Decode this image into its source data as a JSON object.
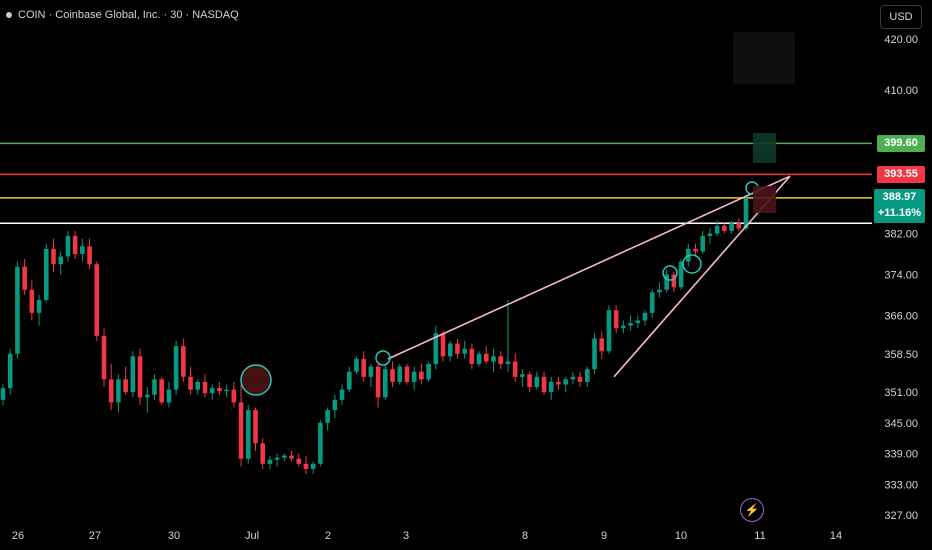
{
  "header": {
    "symbol_line": "COIN · Coinbase Global, Inc. · 30 · NASDAQ",
    "currency": "USD"
  },
  "price_tags": [
    {
      "label": "399.60",
      "value": 399.6,
      "color": "#4caf50"
    },
    {
      "label": "393.55",
      "value": 393.55,
      "color": "#f23645"
    },
    {
      "label": "388.97",
      "label2": "+11.16%",
      "value": 388.97,
      "color": "#089981"
    }
  ],
  "chart_data": {
    "type": "candlestick",
    "yaxis_ticks": [
      "420.00",
      "410.00",
      "399.60",
      "393.55",
      "388.97",
      "382.00",
      "374.00",
      "366.00",
      "358.50",
      "351.00",
      "345.00",
      "339.00",
      "333.00",
      "327.00"
    ],
    "x_ticks": [
      "26",
      "27",
      "30",
      "Jul",
      "2",
      "3",
      "8",
      "9",
      "10",
      "11",
      "14"
    ],
    "horizontal_levels": [
      {
        "value": 399.6,
        "color": "#4caf50"
      },
      {
        "value": 393.55,
        "color": "#f23645"
      },
      {
        "value": 388.97,
        "color": "#f0c93a"
      },
      {
        "value": 384.0,
        "color": "#ffffff"
      }
    ],
    "wedge_lines": [
      {
        "from": [
          388,
          357.5
        ],
        "to": [
          790,
          393.2
        ],
        "color": "#f5b8cf"
      },
      {
        "from": [
          614,
          354.0
        ],
        "to": [
          790,
          393.2
        ],
        "color": "#f5b8cf"
      }
    ],
    "candles": [
      [
        349.5,
        352.5,
        348.5,
        351.8
      ],
      [
        351.8,
        359.5,
        350.5,
        358.5
      ],
      [
        358.5,
        376.5,
        357.5,
        375.5
      ],
      [
        375.5,
        377.0,
        370.0,
        371.0
      ],
      [
        371.0,
        373.0,
        365.0,
        366.5
      ],
      [
        366.5,
        370.0,
        364.0,
        369.0
      ],
      [
        369.0,
        380.0,
        368.5,
        379.0
      ],
      [
        379.0,
        381.0,
        374.5,
        376.0
      ],
      [
        376.0,
        378.5,
        374.0,
        377.5
      ],
      [
        377.5,
        382.5,
        376.5,
        381.5
      ],
      [
        381.5,
        382.5,
        377.0,
        378.0
      ],
      [
        378.0,
        381.0,
        376.5,
        379.5
      ],
      [
        379.5,
        381.0,
        375.0,
        376.0
      ],
      [
        376.0,
        376.5,
        361.0,
        362.0
      ],
      [
        362.0,
        363.5,
        352.0,
        353.5
      ],
      [
        353.5,
        356.5,
        347.5,
        349.0
      ],
      [
        349.0,
        354.5,
        347.0,
        353.5
      ],
      [
        353.5,
        356.0,
        350.5,
        351.0
      ],
      [
        351.0,
        359.0,
        350.0,
        358.0
      ],
      [
        358.0,
        359.5,
        348.5,
        350.0
      ],
      [
        350.0,
        352.0,
        347.0,
        350.5
      ],
      [
        350.5,
        354.5,
        349.5,
        353.5
      ],
      [
        353.5,
        354.0,
        348.5,
        349.0
      ],
      [
        349.0,
        353.0,
        348.0,
        351.5
      ],
      [
        351.5,
        361.0,
        350.5,
        360.0
      ],
      [
        360.0,
        361.5,
        353.0,
        354.0
      ],
      [
        354.0,
        356.0,
        350.5,
        351.5
      ],
      [
        351.5,
        353.5,
        350.5,
        353.0
      ],
      [
        353.0,
        354.5,
        350.0,
        350.8
      ],
      [
        350.8,
        352.5,
        349.5,
        351.8
      ],
      [
        351.8,
        353.0,
        350.5,
        351.2
      ],
      [
        351.2,
        352.5,
        350.0,
        351.5
      ],
      [
        351.5,
        353.0,
        348.0,
        349.0
      ],
      [
        349.0,
        352.5,
        336.5,
        338.0
      ],
      [
        338.0,
        348.5,
        337.0,
        347.5
      ],
      [
        347.5,
        348.0,
        339.5,
        341.0
      ],
      [
        341.0,
        342.0,
        336.0,
        337.0
      ],
      [
        337.0,
        338.5,
        336.0,
        337.8
      ],
      [
        337.8,
        339.0,
        336.5,
        338.2
      ],
      [
        338.2,
        339.0,
        337.5,
        338.6
      ],
      [
        338.6,
        339.5,
        337.5,
        338.0
      ],
      [
        338.0,
        339.0,
        336.5,
        337.0
      ],
      [
        337.0,
        338.5,
        335.0,
        336.0
      ],
      [
        336.0,
        337.5,
        335.0,
        337.0
      ],
      [
        337.0,
        345.5,
        336.5,
        345.0
      ],
      [
        345.0,
        348.0,
        343.5,
        347.5
      ],
      [
        347.5,
        350.5,
        346.0,
        349.5
      ],
      [
        349.5,
        352.5,
        348.5,
        351.5
      ],
      [
        351.5,
        356.0,
        351.0,
        355.0
      ],
      [
        355.0,
        358.0,
        354.5,
        357.5
      ],
      [
        357.5,
        359.0,
        353.0,
        354.0
      ],
      [
        354.0,
        356.5,
        352.0,
        356.0
      ],
      [
        356.0,
        357.0,
        348.0,
        350.0
      ],
      [
        350.0,
        356.5,
        349.5,
        355.5
      ],
      [
        355.5,
        357.0,
        352.0,
        353.0
      ],
      [
        353.0,
        356.5,
        352.5,
        356.0
      ],
      [
        356.0,
        356.5,
        352.5,
        353.0
      ],
      [
        353.0,
        356.0,
        351.5,
        355.0
      ],
      [
        355.0,
        356.5,
        352.5,
        353.5
      ],
      [
        353.5,
        357.0,
        353.0,
        356.5
      ],
      [
        356.5,
        364.0,
        355.5,
        362.5
      ],
      [
        362.5,
        363.0,
        357.0,
        358.0
      ],
      [
        358.0,
        361.0,
        357.0,
        360.5
      ],
      [
        360.5,
        361.5,
        357.5,
        358.5
      ],
      [
        358.5,
        361.0,
        357.5,
        359.5
      ],
      [
        359.5,
        360.5,
        355.5,
        356.5
      ],
      [
        356.5,
        359.0,
        356.0,
        358.5
      ],
      [
        358.5,
        360.0,
        356.5,
        357.0
      ],
      [
        357.0,
        359.5,
        355.0,
        358.0
      ],
      [
        358.0,
        359.0,
        355.5,
        356.5
      ],
      [
        356.5,
        369.0,
        355.0,
        357.0
      ],
      [
        357.0,
        358.5,
        353.0,
        354.0
      ],
      [
        354.0,
        355.5,
        352.0,
        354.5
      ],
      [
        354.5,
        355.0,
        351.0,
        352.0
      ],
      [
        352.0,
        355.0,
        351.5,
        354.0
      ],
      [
        354.0,
        355.0,
        350.5,
        351.0
      ],
      [
        351.0,
        354.0,
        349.5,
        353.0
      ],
      [
        353.0,
        354.0,
        351.5,
        352.5
      ],
      [
        352.5,
        354.0,
        351.0,
        353.5
      ],
      [
        353.5,
        355.0,
        352.5,
        354.0
      ],
      [
        354.0,
        355.0,
        352.0,
        353.0
      ],
      [
        353.0,
        356.0,
        352.0,
        355.5
      ],
      [
        355.5,
        362.5,
        354.5,
        361.5
      ],
      [
        361.5,
        363.0,
        357.5,
        359.0
      ],
      [
        359.0,
        368.0,
        358.5,
        367.0
      ],
      [
        367.0,
        368.0,
        362.5,
        363.5
      ],
      [
        363.5,
        365.0,
        362.5,
        364.0
      ],
      [
        364.0,
        366.0,
        363.0,
        364.5
      ],
      [
        364.5,
        366.0,
        363.5,
        365.0
      ],
      [
        365.0,
        367.0,
        364.0,
        366.5
      ],
      [
        366.5,
        371.0,
        365.5,
        370.5
      ],
      [
        370.5,
        372.5,
        369.5,
        371.0
      ],
      [
        371.0,
        375.0,
        370.5,
        374.0
      ],
      [
        374.0,
        374.5,
        370.5,
        371.5
      ],
      [
        371.5,
        377.0,
        371.0,
        376.5
      ],
      [
        376.5,
        380.0,
        375.5,
        379.0
      ],
      [
        379.0,
        380.0,
        377.5,
        378.5
      ],
      [
        378.5,
        382.5,
        378.0,
        381.5
      ],
      [
        381.5,
        383.0,
        380.0,
        382.0
      ],
      [
        382.0,
        384.5,
        381.5,
        383.5
      ],
      [
        383.5,
        384.0,
        382.0,
        382.5
      ],
      [
        382.5,
        384.5,
        382.0,
        384.0
      ],
      [
        384.0,
        385.0,
        382.5,
        383.0
      ],
      [
        383.0,
        389.5,
        382.5,
        388.97
      ]
    ]
  }
}
